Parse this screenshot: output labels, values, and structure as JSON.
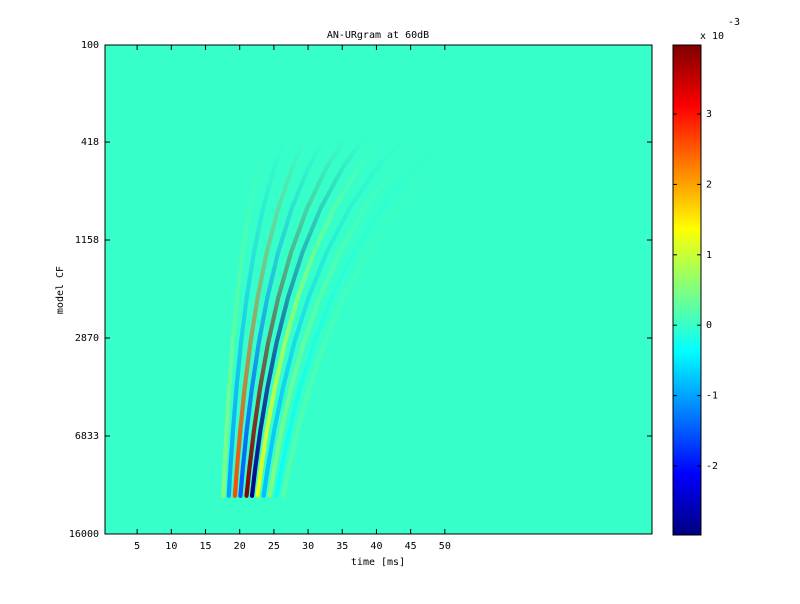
{
  "chart_data": {
    "type": "heatmap",
    "title": "AN-URgram at 60dB",
    "x_label": "time [ms]",
    "y_label": "model CF",
    "xlim": [
      0.3,
      80.3
    ],
    "xticks": [
      5,
      10,
      15,
      20,
      25,
      30,
      35,
      40,
      45,
      50
    ],
    "ylim": [
      100,
      16000
    ],
    "y_scale": "greenwood",
    "y_reversed": true,
    "yticks": [
      100,
      418,
      1158,
      2870,
      6833,
      16000
    ],
    "clim": [
      -2.98,
      3.98
    ],
    "cticks": [
      -2,
      -1,
      0,
      1,
      2,
      3
    ],
    "colorbar_label": "x 10",
    "colorbar_exponent": "-3",
    "colormap": "jet",
    "background_value": 0,
    "stripes": [
      {
        "x": 17.6,
        "value": 0.5
      },
      {
        "x": 18.4,
        "value": -1.0
      },
      {
        "x": 19.3,
        "value": 2.6
      },
      {
        "x": 20.1,
        "value": -1.5
      },
      {
        "x": 21.0,
        "value": 3.9
      },
      {
        "x": 21.8,
        "value": -2.9
      },
      {
        "x": 22.6,
        "value": 1.2
      },
      {
        "x": 23.5,
        "value": -0.8
      },
      {
        "x": 24.4,
        "value": 0.5
      },
      {
        "x": 25.4,
        "value": -0.3
      },
      {
        "x": 26.4,
        "value": 0.2
      }
    ]
  }
}
